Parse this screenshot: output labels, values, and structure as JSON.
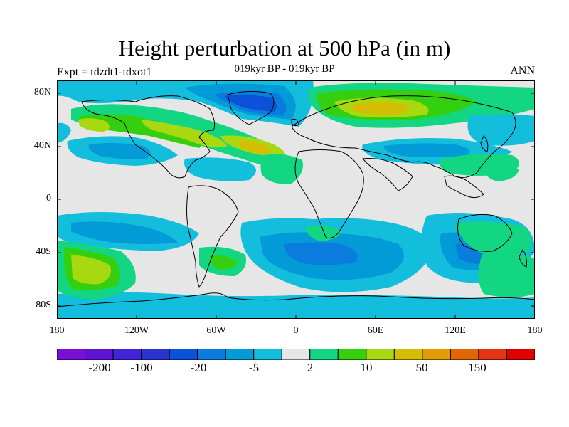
{
  "header": {
    "title": "Height perturbation at 500 hPa (in m)",
    "subtitle": "019kyr BP - 019kyr BP",
    "left_label": "Expt = tdzdt1-tdxot1",
    "right_label": "ANN"
  },
  "axes": {
    "y_ticks": [
      "80N",
      "40N",
      "0",
      "40S",
      "80S"
    ],
    "x_ticks": [
      "180",
      "120W",
      "60W",
      "0",
      "60E",
      "120E",
      "180"
    ]
  },
  "colorbar": {
    "colors": [
      "#7a10d8",
      "#5d14d4",
      "#4224d8",
      "#2a32d2",
      "#0c52d8",
      "#0a7cde",
      "#029bd8",
      "#12bedc",
      "#e6e6e6",
      "#12d682",
      "#34d010",
      "#a8d810",
      "#d4be04",
      "#e09c04",
      "#e26604",
      "#e43414",
      "#e00000"
    ],
    "labels": [
      "-200",
      "-100",
      "-20",
      "-5",
      "2",
      "10",
      "50",
      "150"
    ]
  },
  "colors": {
    "background_field": "#e6e6e6",
    "coastline": "#000000"
  }
}
